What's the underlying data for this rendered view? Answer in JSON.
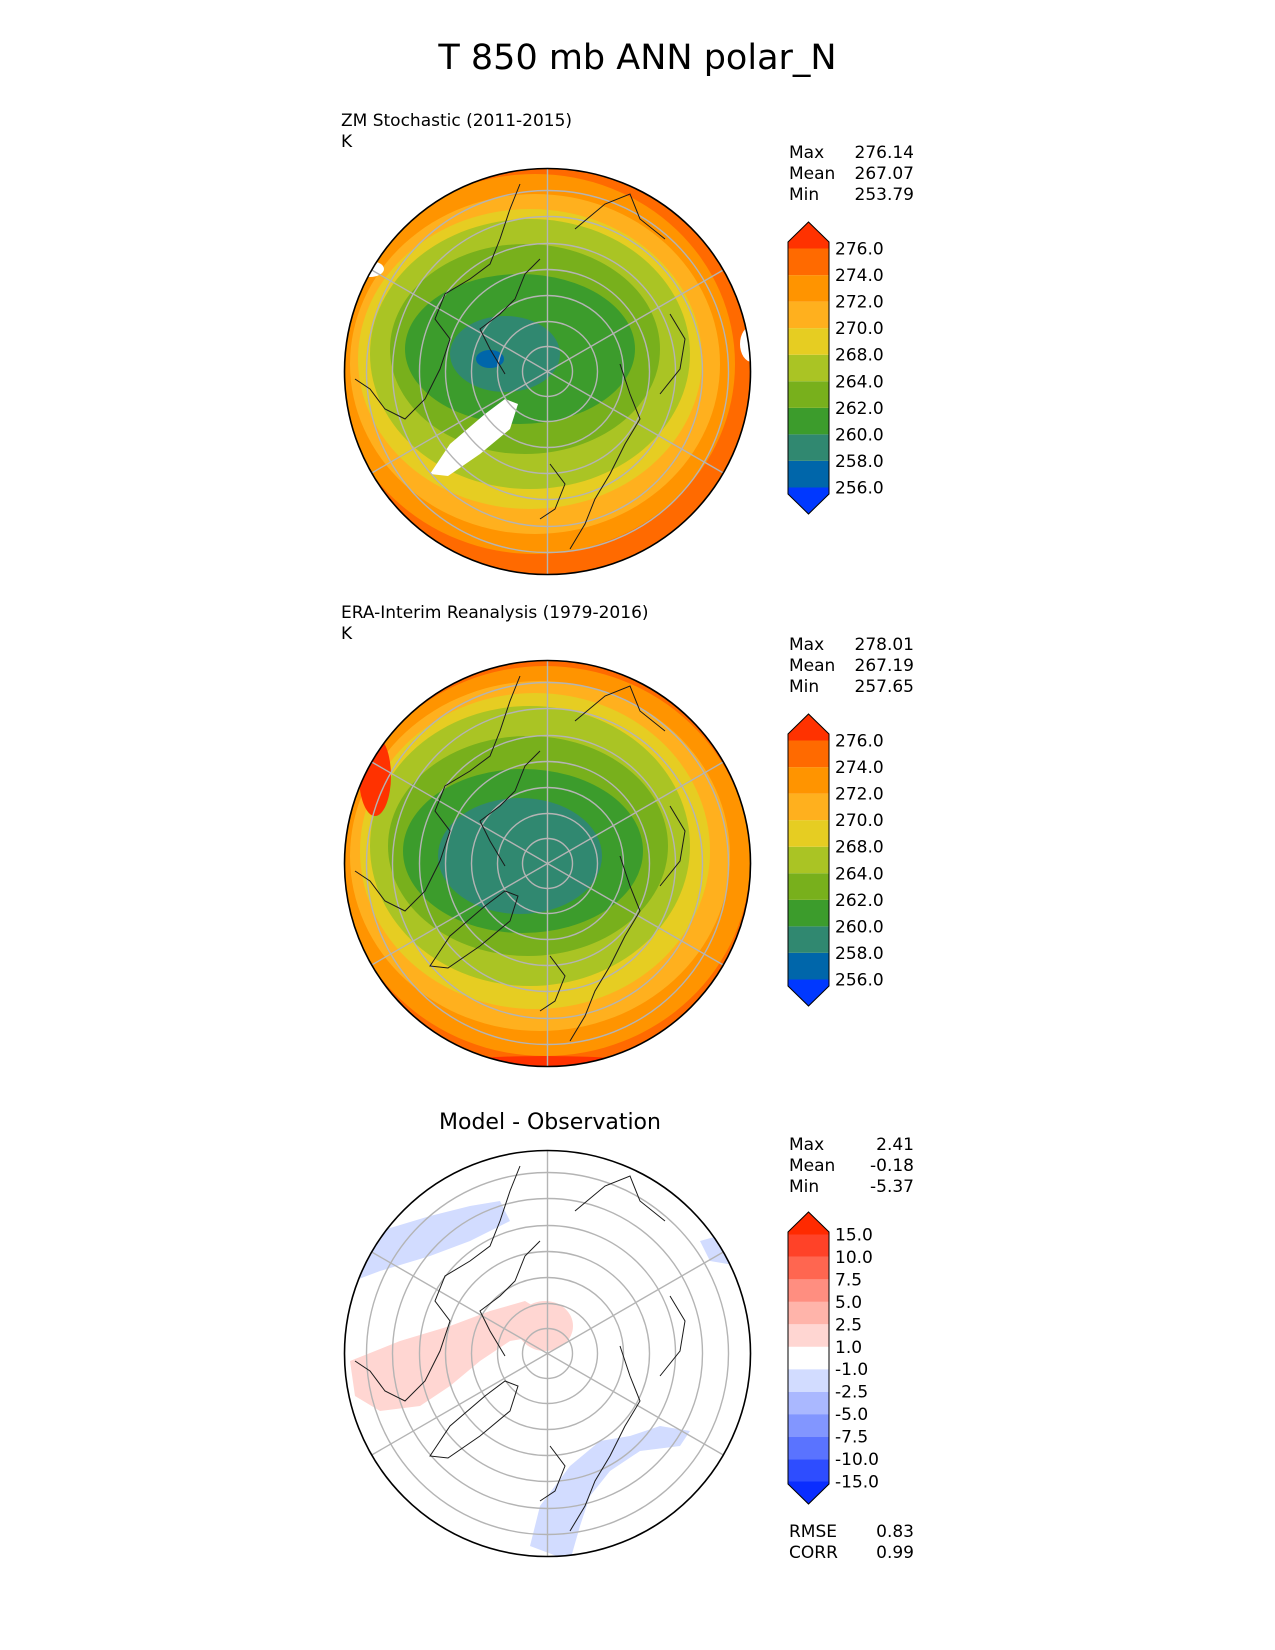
{
  "title": "T 850 mb ANN polar_N",
  "panels": [
    {
      "id": "test",
      "title": "ZM Stochastic (2011-2015)",
      "units": "K",
      "stats": [
        {
          "label": "Max",
          "value": "276.14"
        },
        {
          "label": "Mean",
          "value": "267.07"
        },
        {
          "label": "Min",
          "value": "253.79"
        }
      ],
      "colorbar": {
        "colors": [
          "#0038ff",
          "#0066aa",
          "#308870",
          "#3c9c2c",
          "#78b01c",
          "#aac424",
          "#e6cd22",
          "#ffb01e",
          "#ff9400",
          "#ff6a00",
          "#ff3200"
        ],
        "ticks": [
          "276.0",
          "274.0",
          "272.0",
          "270.0",
          "268.0",
          "264.0",
          "262.0",
          "260.0",
          "258.0",
          "256.0"
        ]
      }
    },
    {
      "id": "ref",
      "title": "ERA-Interim Reanalysis (1979-2016)",
      "units": "K",
      "stats": [
        {
          "label": "Max",
          "value": "278.01"
        },
        {
          "label": "Mean",
          "value": "267.19"
        },
        {
          "label": "Min",
          "value": "257.65"
        }
      ],
      "colorbar": {
        "colors": [
          "#0038ff",
          "#0066aa",
          "#308870",
          "#3c9c2c",
          "#78b01c",
          "#aac424",
          "#e6cd22",
          "#ffb01e",
          "#ff9400",
          "#ff6a00",
          "#ff3200"
        ],
        "ticks": [
          "276.0",
          "274.0",
          "272.0",
          "270.0",
          "268.0",
          "264.0",
          "262.0",
          "260.0",
          "258.0",
          "256.0"
        ]
      }
    },
    {
      "id": "diff",
      "title": "Model - Observation",
      "stats": [
        {
          "label": "Max",
          "value": "2.41"
        },
        {
          "label": "Mean",
          "value": "-0.18"
        },
        {
          "label": "Min",
          "value": "-5.37"
        }
      ],
      "colorbar": {
        "colors": [
          "#0a2dff",
          "#2e4dff",
          "#5a73ff",
          "#8296ff",
          "#aab8ff",
          "#d2dcff",
          "#ffffff",
          "#ffd6d2",
          "#ffb4aa",
          "#ff8e80",
          "#ff6650",
          "#ff4228",
          "#ff2a00"
        ],
        "ticks": [
          "15.0",
          "10.0",
          "7.5",
          "5.0",
          "2.5",
          "1.0",
          "-1.0",
          "-2.5",
          "-5.0",
          "-7.5",
          "-10.0",
          "-15.0"
        ]
      },
      "metrics": [
        {
          "label": "RMSE",
          "value": "0.83"
        },
        {
          "label": "CORR",
          "value": "0.99"
        }
      ]
    }
  ]
}
